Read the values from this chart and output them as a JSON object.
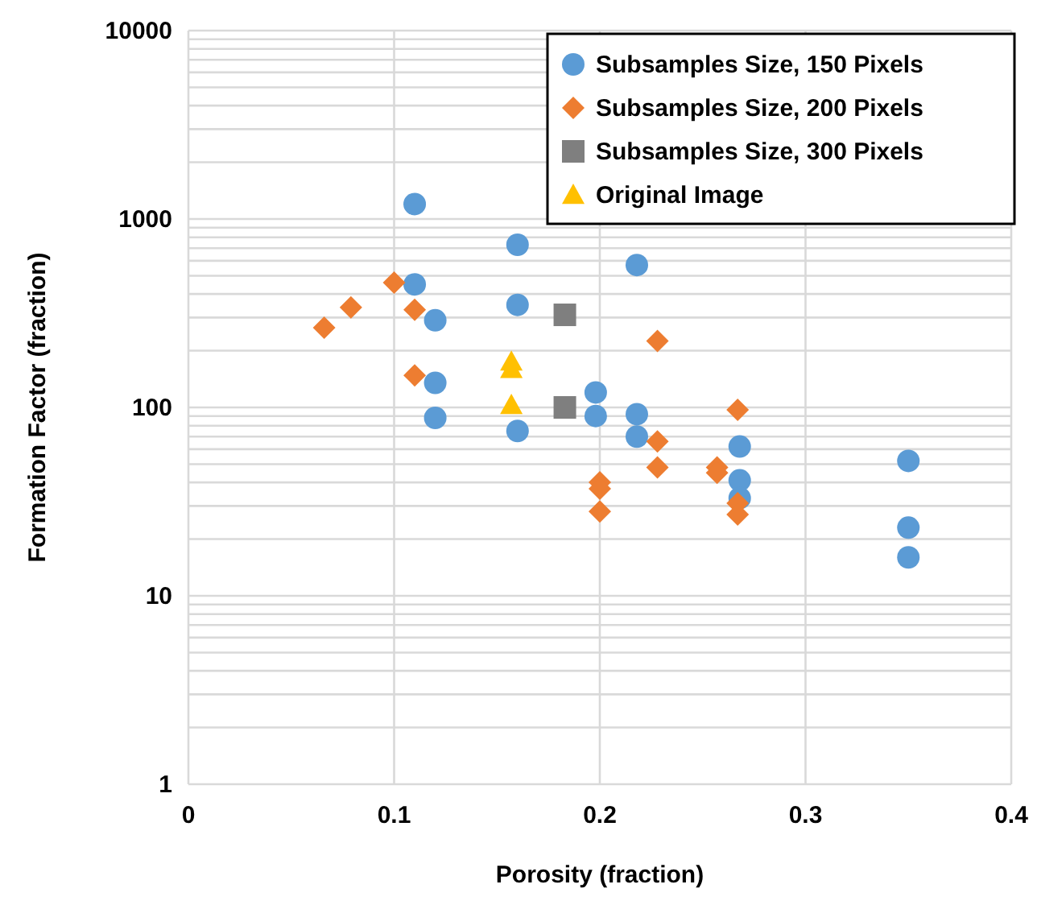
{
  "chart_data": {
    "type": "scatter",
    "xlabel": "Porosity (fraction)",
    "ylabel": "Formation Factor (fraction)",
    "log": "y",
    "grid": true,
    "legend": "top right",
    "xlim": [
      0,
      0.4
    ],
    "xticks": [
      0,
      0.1,
      0.2,
      0.3,
      0.4
    ],
    "ylim": [
      1,
      10000
    ],
    "yticks": [
      1,
      10,
      100,
      1000,
      10000
    ],
    "series": [
      {
        "name": "Subsamples Size, 150 Pixels",
        "color": "#5b9bd5",
        "marker": "circle",
        "x": [
          0.11,
          0.11,
          0.12,
          0.12,
          0.12,
          0.16,
          0.16,
          0.16,
          0.198,
          0.198,
          0.218,
          0.218,
          0.218,
          0.268,
          0.268,
          0.268,
          0.35,
          0.35,
          0.35
        ],
        "values": [
          1200,
          450,
          290,
          135,
          88,
          730,
          350,
          75,
          120,
          90,
          570,
          92,
          70,
          62,
          41,
          33,
          52,
          23,
          16
        ]
      },
      {
        "name": "Subsamples Size, 200 Pixels",
        "color": "#ed7d31",
        "marker": "diamond",
        "x": [
          0.066,
          0.079,
          0.1,
          0.11,
          0.11,
          0.2,
          0.2,
          0.2,
          0.228,
          0.228,
          0.228,
          0.257,
          0.257,
          0.267,
          0.267,
          0.267
        ],
        "values": [
          265,
          340,
          460,
          330,
          148,
          40,
          37,
          28,
          225,
          66,
          48,
          48,
          45,
          97,
          31,
          27
        ]
      },
      {
        "name": "Subsamples Size, 300 Pixels",
        "color": "#7f7f7f",
        "marker": "square",
        "x": [
          0.183,
          0.183
        ],
        "values": [
          310,
          100
        ]
      },
      {
        "name": "Original Image",
        "color": "#ffc000",
        "marker": "triangle",
        "x": [
          0.157,
          0.157,
          0.157
        ],
        "values": [
          175,
          160,
          103
        ]
      }
    ]
  }
}
